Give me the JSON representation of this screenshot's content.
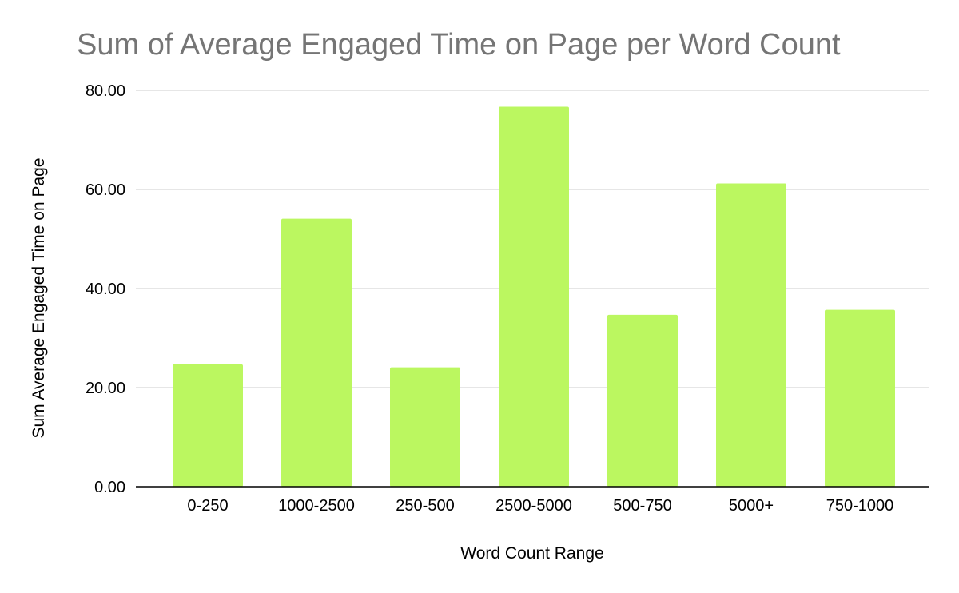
{
  "chart_data": {
    "type": "bar",
    "title": "Sum of Average Engaged Time on Page per Word Count",
    "xlabel": "Word Count Range",
    "ylabel": "Sum Average Engaged Time on Page",
    "categories": [
      "0-250",
      "1000-2500",
      "250-500",
      "2500-5000",
      "500-750",
      "5000+",
      "750-1000"
    ],
    "values": [
      24.7,
      54.1,
      24.1,
      76.7,
      34.7,
      61.2,
      35.7
    ],
    "ylim": [
      0,
      80
    ],
    "yticks": [
      0,
      20,
      40,
      60,
      80
    ],
    "ytick_labels": [
      "0.00",
      "20.00",
      "40.00",
      "60.00",
      "80.00"
    ],
    "grid": true,
    "legend": "none",
    "colors": {
      "bar": "#bbf760",
      "title": "#757575",
      "text": "#000000",
      "grid": "#cccccc",
      "axis": "#000000"
    }
  }
}
